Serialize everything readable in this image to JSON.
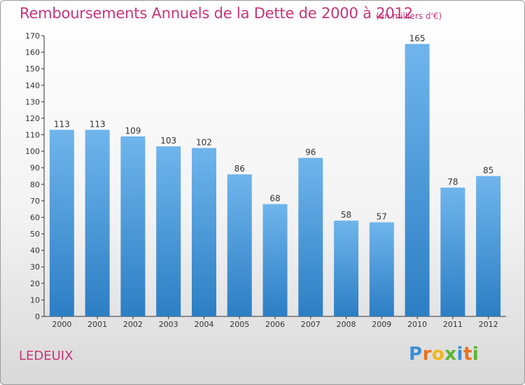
{
  "title": "Remboursements Annuels de la Dette de 2000 à 2012",
  "subtitle": "(en milliers d'€)",
  "commune": "LEDEUIX",
  "logo": {
    "letters": [
      {
        "ch": "P",
        "color": "#3a8fd6"
      },
      {
        "ch": "r",
        "color": "#e8711f"
      },
      {
        "ch": "o",
        "color": "#f2b618"
      },
      {
        "ch": "x",
        "color": "#5cb531"
      },
      {
        "ch": "i",
        "color": "#3a8fd6"
      },
      {
        "ch": "t",
        "color": "#e8711f"
      },
      {
        "ch": "i",
        "color": "#5cb531"
      }
    ]
  },
  "colors": {
    "title": "#c8347a",
    "bar_top": "#6fb5ec",
    "bar_bottom": "#2c7ec4"
  },
  "chart_data": {
    "type": "bar",
    "categories": [
      "2000",
      "2001",
      "2002",
      "2003",
      "2004",
      "2005",
      "2006",
      "2007",
      "2008",
      "2009",
      "2010",
      "2011",
      "2012"
    ],
    "values": [
      113,
      113,
      109,
      103,
      102,
      86,
      68,
      96,
      58,
      57,
      165,
      78,
      85
    ],
    "ylim": [
      0,
      170
    ],
    "yticks": [
      0,
      10,
      20,
      30,
      40,
      50,
      60,
      70,
      80,
      90,
      100,
      110,
      120,
      130,
      140,
      150,
      160,
      170
    ],
    "grid": false,
    "data_labels": true
  }
}
